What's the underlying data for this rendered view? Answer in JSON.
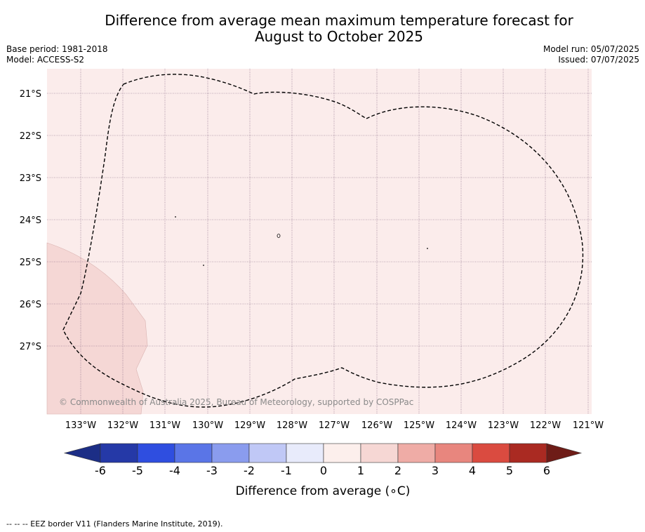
{
  "title_line1": "Difference from average mean maximum temperature forecast for",
  "title_line2": "August to October 2025",
  "meta": {
    "base_period": "Base period: 1981-2018",
    "model": "Model: ACCESS-S2",
    "model_run": "Model run: 05/07/2025",
    "issued": "Issued: 07/07/2025"
  },
  "map": {
    "lat_labels": [
      "21°S",
      "22°S",
      "23°S",
      "24°S",
      "25°S",
      "26°S",
      "27°S"
    ],
    "lon_labels": [
      "133°W",
      "132°W",
      "131°W",
      "130°W",
      "129°W",
      "128°W",
      "127°W",
      "126°W",
      "125°W",
      "124°W",
      "123°W",
      "122°W",
      "121°W"
    ],
    "copyright": "© Commonwealth of Australia 2025, Bureau of Meteorology, supported by COSPPac",
    "colors": {
      "background_fill": "#fbeceb",
      "region_fill": "#f5d7d5",
      "border": "#000000"
    }
  },
  "colorbar": {
    "title": "Difference from average (∘C)",
    "tick_labels": [
      "-6",
      "-5",
      "-4",
      "-3",
      "-2",
      "-1",
      "0",
      "1",
      "2",
      "3",
      "4",
      "5",
      "6"
    ],
    "colors": [
      "#2539a7",
      "#2f4ee0",
      "#5a75e7",
      "#8a9cee",
      "#c0c8f6",
      "#e8ebfb",
      "#fcefec",
      "#f6d7d4",
      "#efaca6",
      "#e8867e",
      "#da4b40",
      "#aa2a22"
    ],
    "under_color": "#1c2e86",
    "over_color": "#6e1c17"
  },
  "footnote": "-- -- -- EEZ border V11 (Flanders Marine Institute, 2019)."
}
